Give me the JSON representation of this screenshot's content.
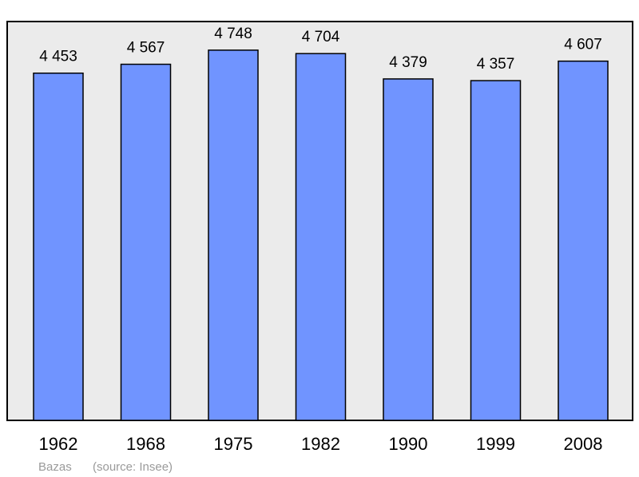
{
  "chart_data": {
    "type": "bar",
    "categories": [
      "1962",
      "1968",
      "1975",
      "1982",
      "1990",
      "1999",
      "2008"
    ],
    "values": [
      4453,
      4567,
      4748,
      4704,
      4379,
      4357,
      4607
    ],
    "value_labels": [
      "4 453",
      "4 567",
      "4 748",
      "4 704",
      "4 379",
      "4 357",
      "4 607"
    ],
    "ylim": [
      0,
      5115
    ],
    "grid": false
  },
  "footer": {
    "place": "Bazas",
    "source": "(source: Insee)"
  },
  "colors": {
    "bar_fill": "#7094ff",
    "bar_stroke": "#000000",
    "plot_bg": "#ebebeb",
    "frame": "#000000",
    "footer_text": "#9a9a9a"
  }
}
